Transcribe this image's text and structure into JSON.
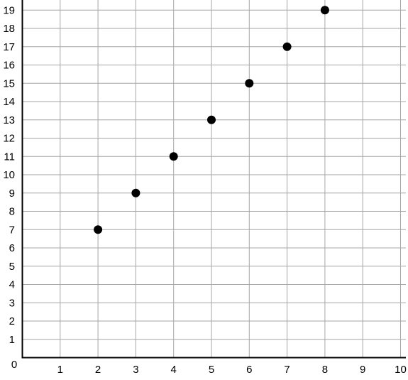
{
  "chart_data": {
    "type": "scatter",
    "title": "",
    "xlabel": "",
    "ylabel": "",
    "xlim": [
      0,
      10
    ],
    "ylim": [
      0,
      19.5
    ],
    "x_ticks": [
      1,
      2,
      3,
      4,
      5,
      6,
      7,
      8,
      9,
      10
    ],
    "y_ticks": [
      1,
      2,
      3,
      4,
      5,
      6,
      7,
      8,
      9,
      10,
      11,
      12,
      13,
      14,
      15,
      16,
      17,
      18,
      19
    ],
    "origin_label": "0",
    "grid": true,
    "points": [
      {
        "x": 2,
        "y": 7
      },
      {
        "x": 3,
        "y": 9
      },
      {
        "x": 4,
        "y": 11
      },
      {
        "x": 5,
        "y": 13
      },
      {
        "x": 6,
        "y": 15
      },
      {
        "x": 7,
        "y": 17
      },
      {
        "x": 8,
        "y": 19
      }
    ],
    "colors": {
      "grid": "#a6a6a6",
      "axis": "#000000",
      "point": "#000000",
      "background": "#ffffff"
    }
  }
}
